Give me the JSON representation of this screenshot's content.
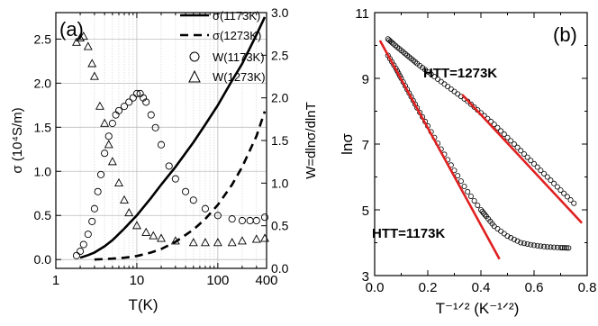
{
  "chart_data": [
    {
      "panel_label": "(a)",
      "type": "line",
      "x_scale": "log",
      "xlabel": "T(K)",
      "ylabel_left": "σ (10⁴S/m)",
      "ylabel_right": "W=dlnσ/dlnT",
      "xlim": [
        1,
        400
      ],
      "ylim_left": [
        -0.1,
        2.8
      ],
      "ylim_right": [
        0.0,
        3.0
      ],
      "x_ticks": [
        1,
        10,
        100,
        400
      ],
      "x_tick_labels": [
        "1",
        "10",
        "100",
        "400"
      ],
      "y_left_ticks": [
        0.0,
        0.5,
        1.0,
        1.5,
        2.0,
        2.5
      ],
      "y_left_tick_labels": [
        "0.0",
        "0.5",
        "1.0",
        "1.5",
        "2.0",
        "2.5"
      ],
      "y_right_ticks": [
        0.0,
        0.5,
        1.0,
        1.5,
        2.0,
        2.5,
        3.0
      ],
      "y_right_tick_labels": [
        "0.0",
        "0.5",
        "1.0",
        "1.5",
        "2.0",
        "2.5",
        "3.0"
      ],
      "grid": true,
      "legend_position": "top-right",
      "series": [
        {
          "name": "σ(1173K)",
          "axis": "left",
          "style": "solid-line",
          "x": [
            2,
            2.5,
            3,
            4,
            5,
            7,
            10,
            15,
            20,
            30,
            50,
            70,
            100,
            150,
            200,
            300,
            380
          ],
          "y": [
            0.02,
            0.05,
            0.08,
            0.15,
            0.22,
            0.35,
            0.5,
            0.7,
            0.85,
            1.05,
            1.33,
            1.53,
            1.75,
            2.03,
            2.22,
            2.55,
            2.75
          ]
        },
        {
          "name": "σ(1273K)",
          "axis": "left",
          "style": "dashed-line",
          "x": [
            3,
            5,
            7,
            10,
            15,
            20,
            30,
            50,
            70,
            100,
            150,
            200,
            300,
            380
          ],
          "y": [
            0.0,
            0.01,
            0.02,
            0.04,
            0.08,
            0.12,
            0.2,
            0.34,
            0.46,
            0.62,
            0.85,
            1.05,
            1.4,
            1.68
          ]
        },
        {
          "name": "W(1173K)",
          "axis": "right",
          "style": "circle-markers",
          "x": [
            1.8,
            2.0,
            2.2,
            2.5,
            2.8,
            3.0,
            3.3,
            3.6,
            4.0,
            4.5,
            5.0,
            5.5,
            6.0,
            7.0,
            8.0,
            9.0,
            10.0,
            11.0,
            12.0,
            13.0,
            15.0,
            17.0,
            20.0,
            25.0,
            30.0,
            40.0,
            50.0,
            70.0,
            100.0,
            150.0,
            200.0,
            250.0,
            300.0,
            380.0
          ],
          "y": [
            0.15,
            0.2,
            0.28,
            0.4,
            0.55,
            0.7,
            0.9,
            1.1,
            1.35,
            1.55,
            1.7,
            1.8,
            1.85,
            1.9,
            1.95,
            2.0,
            2.05,
            2.05,
            2.0,
            1.95,
            1.8,
            1.65,
            1.45,
            1.2,
            1.05,
            0.9,
            0.8,
            0.7,
            0.62,
            0.58,
            0.56,
            0.56,
            0.56,
            0.6
          ]
        },
        {
          "name": "W(1273K)",
          "axis": "right",
          "style": "triangle-markers",
          "x": [
            1.8,
            2.0,
            2.2,
            2.5,
            2.8,
            3.0,
            3.5,
            4.0,
            4.5,
            5.0,
            6.0,
            7.0,
            8.0,
            10.0,
            13.0,
            16.0,
            20.0,
            30.0,
            50.0,
            70.0,
            100.0,
            150.0,
            200.0,
            300.0,
            380.0
          ],
          "y": [
            2.65,
            2.7,
            2.72,
            2.6,
            2.4,
            2.25,
            1.9,
            1.7,
            1.45,
            1.25,
            1.0,
            0.8,
            0.65,
            0.5,
            0.42,
            0.38,
            0.35,
            0.32,
            0.3,
            0.3,
            0.3,
            0.3,
            0.32,
            0.34,
            0.35
          ]
        }
      ]
    },
    {
      "panel_label": "(b)",
      "type": "scatter",
      "xlabel": "T⁻¹ᐟ² (K⁻¹ᐟ²)",
      "ylabel": "lnσ",
      "xlim": [
        0.0,
        0.8
      ],
      "ylim": [
        3,
        11
      ],
      "x_ticks": [
        0.0,
        0.2,
        0.4,
        0.6,
        0.8
      ],
      "x_tick_labels": [
        "0.0",
        "0.2",
        "0.4",
        "0.6",
        "0.8"
      ],
      "y_ticks": [
        3,
        5,
        7,
        9,
        11
      ],
      "y_tick_labels": [
        "3",
        "5",
        "7",
        "9",
        "11"
      ],
      "grid": false,
      "annotations": [
        "HTT=1273K",
        "HTT=1173K"
      ],
      "series": [
        {
          "label": "HTT=1273K",
          "style": "circle-markers",
          "x": [
            0.05,
            0.07,
            0.1,
            0.13,
            0.16,
            0.2,
            0.25,
            0.3,
            0.35,
            0.4,
            0.45,
            0.5,
            0.55,
            0.6,
            0.65,
            0.7,
            0.75
          ],
          "y": [
            10.2,
            10.05,
            9.85,
            9.65,
            9.45,
            9.2,
            8.9,
            8.6,
            8.3,
            7.95,
            7.6,
            7.2,
            6.8,
            6.4,
            6.0,
            5.6,
            5.2
          ]
        },
        {
          "label": "HTT=1173K",
          "style": "circle-markers",
          "x": [
            0.05,
            0.08,
            0.1,
            0.13,
            0.16,
            0.2,
            0.25,
            0.3,
            0.35,
            0.4,
            0.42,
            0.45,
            0.5,
            0.55,
            0.6,
            0.65,
            0.7,
            0.73
          ],
          "y": [
            9.7,
            9.3,
            9.0,
            8.55,
            8.1,
            7.55,
            6.85,
            6.2,
            5.55,
            5.0,
            4.8,
            4.5,
            4.2,
            4.0,
            3.92,
            3.87,
            3.85,
            3.84
          ]
        },
        {
          "label": "fit-1273K",
          "style": "red-line",
          "x": [
            0.33,
            0.78
          ],
          "y": [
            8.5,
            4.6
          ]
        },
        {
          "label": "fit-1173K",
          "style": "red-line",
          "x": [
            0.02,
            0.47
          ],
          "y": [
            10.15,
            3.5
          ]
        }
      ]
    }
  ]
}
